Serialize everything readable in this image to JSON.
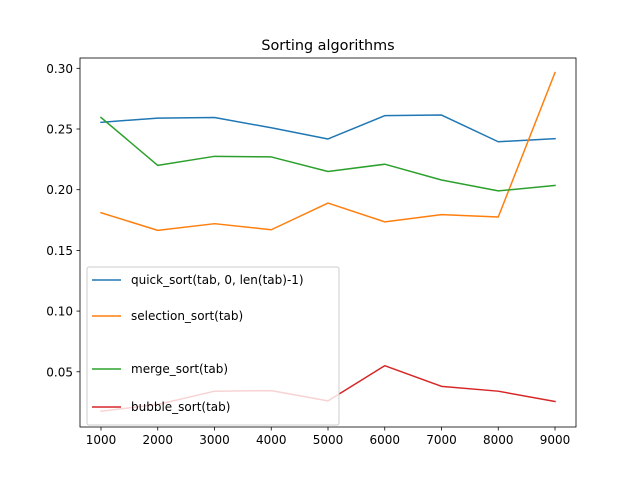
{
  "chart_data": {
    "type": "line",
    "title": "Sorting algorithms",
    "xlabel": "",
    "ylabel": "",
    "x": [
      1000,
      2000,
      3000,
      4000,
      5000,
      6000,
      7000,
      8000,
      9000
    ],
    "xticks": [
      "1000",
      "2000",
      "3000",
      "4000",
      "5000",
      "6000",
      "7000",
      "8000",
      "9000"
    ],
    "yticks": [
      0.05,
      0.1,
      0.15,
      0.2,
      0.25,
      0.3
    ],
    "ytick_labels": [
      "0.05",
      "0.10",
      "0.15",
      "0.20",
      "0.25",
      "0.30"
    ],
    "xlim": [
      630,
      9370
    ],
    "ylim": [
      0.0045,
      0.3085
    ],
    "grid": false,
    "legend_position": "center-left",
    "series": [
      {
        "name": "quick_sort(tab, 0, len(tab)-1)",
        "color": "#1f77b4",
        "values": [
          0.2555,
          0.259,
          0.2595,
          0.251,
          0.2418,
          0.261,
          0.2615,
          0.2395,
          0.242
        ]
      },
      {
        "name": "selection_sort(tab)",
        "color": "#ff7f0e",
        "values": [
          0.181,
          0.1665,
          0.172,
          0.167,
          0.189,
          0.1735,
          0.1795,
          0.1775,
          0.2965
        ]
      },
      {
        "name": "merge_sort(tab)",
        "color": "#2ca02c",
        "values": [
          0.2595,
          0.22,
          0.2275,
          0.227,
          0.215,
          0.221,
          0.208,
          0.199,
          0.2035
        ]
      },
      {
        "name": "bubble_sort(tab)",
        "color": "#d62728",
        "values": [
          0.0175,
          0.023,
          0.034,
          0.0345,
          0.026,
          0.055,
          0.038,
          0.034,
          0.0255
        ]
      }
    ]
  }
}
